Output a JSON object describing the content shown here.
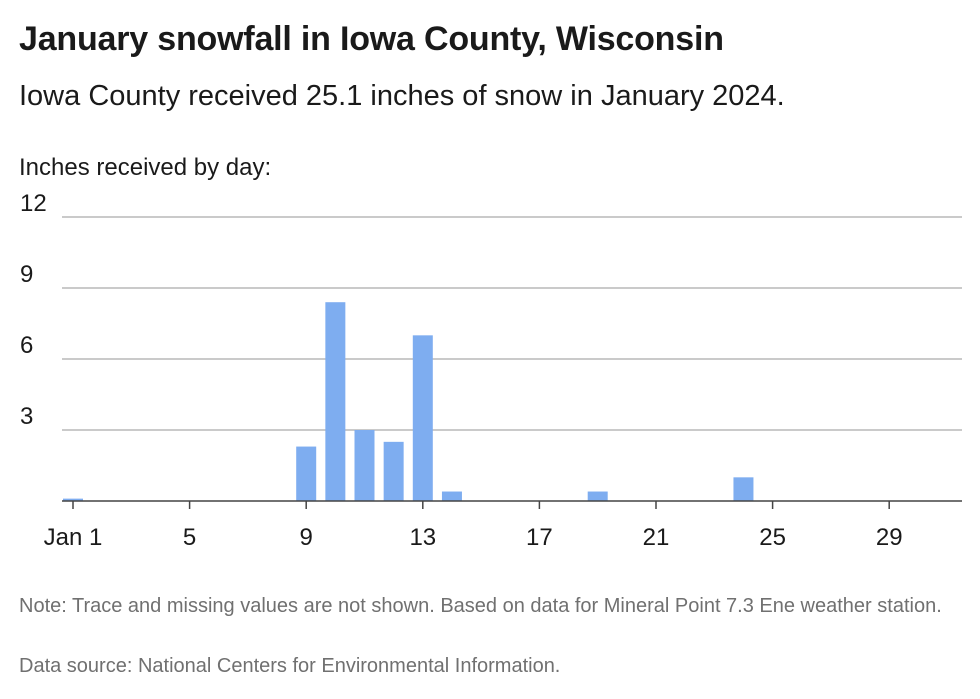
{
  "header": {
    "title": "January snowfall in Iowa County, Wisconsin",
    "subtitle": "Iowa County received 25.1 inches of snow in January 2024.",
    "y_axis_caption": "Inches received by day:"
  },
  "footer": {
    "note": "Note: Trace and missing values are not shown. Based on data for Mineral Point 7.3 Ene weather station.",
    "source": "Data source: National Centers for Environmental Information."
  },
  "chart_data": {
    "type": "bar",
    "title": "January snowfall in Iowa County, Wisconsin",
    "subtitle": "Iowa County received 25.1 inches of snow in January 2024.",
    "ylabel": "Inches received by day:",
    "xlabel": "",
    "ylim": [
      0,
      12
    ],
    "yticks": [
      3,
      6,
      9,
      12
    ],
    "grid": true,
    "bar_color": "#7eadf0",
    "x_tick_days": [
      1,
      5,
      9,
      13,
      17,
      21,
      25,
      29
    ],
    "x_tick_labels": [
      "Jan 1",
      "5",
      "9",
      "13",
      "17",
      "21",
      "25",
      "29"
    ],
    "days": [
      1,
      9,
      10,
      11,
      12,
      13,
      14,
      19,
      24
    ],
    "values": [
      0.1,
      2.3,
      8.4,
      3.0,
      2.5,
      7.0,
      0.4,
      0.4,
      1.0
    ]
  }
}
